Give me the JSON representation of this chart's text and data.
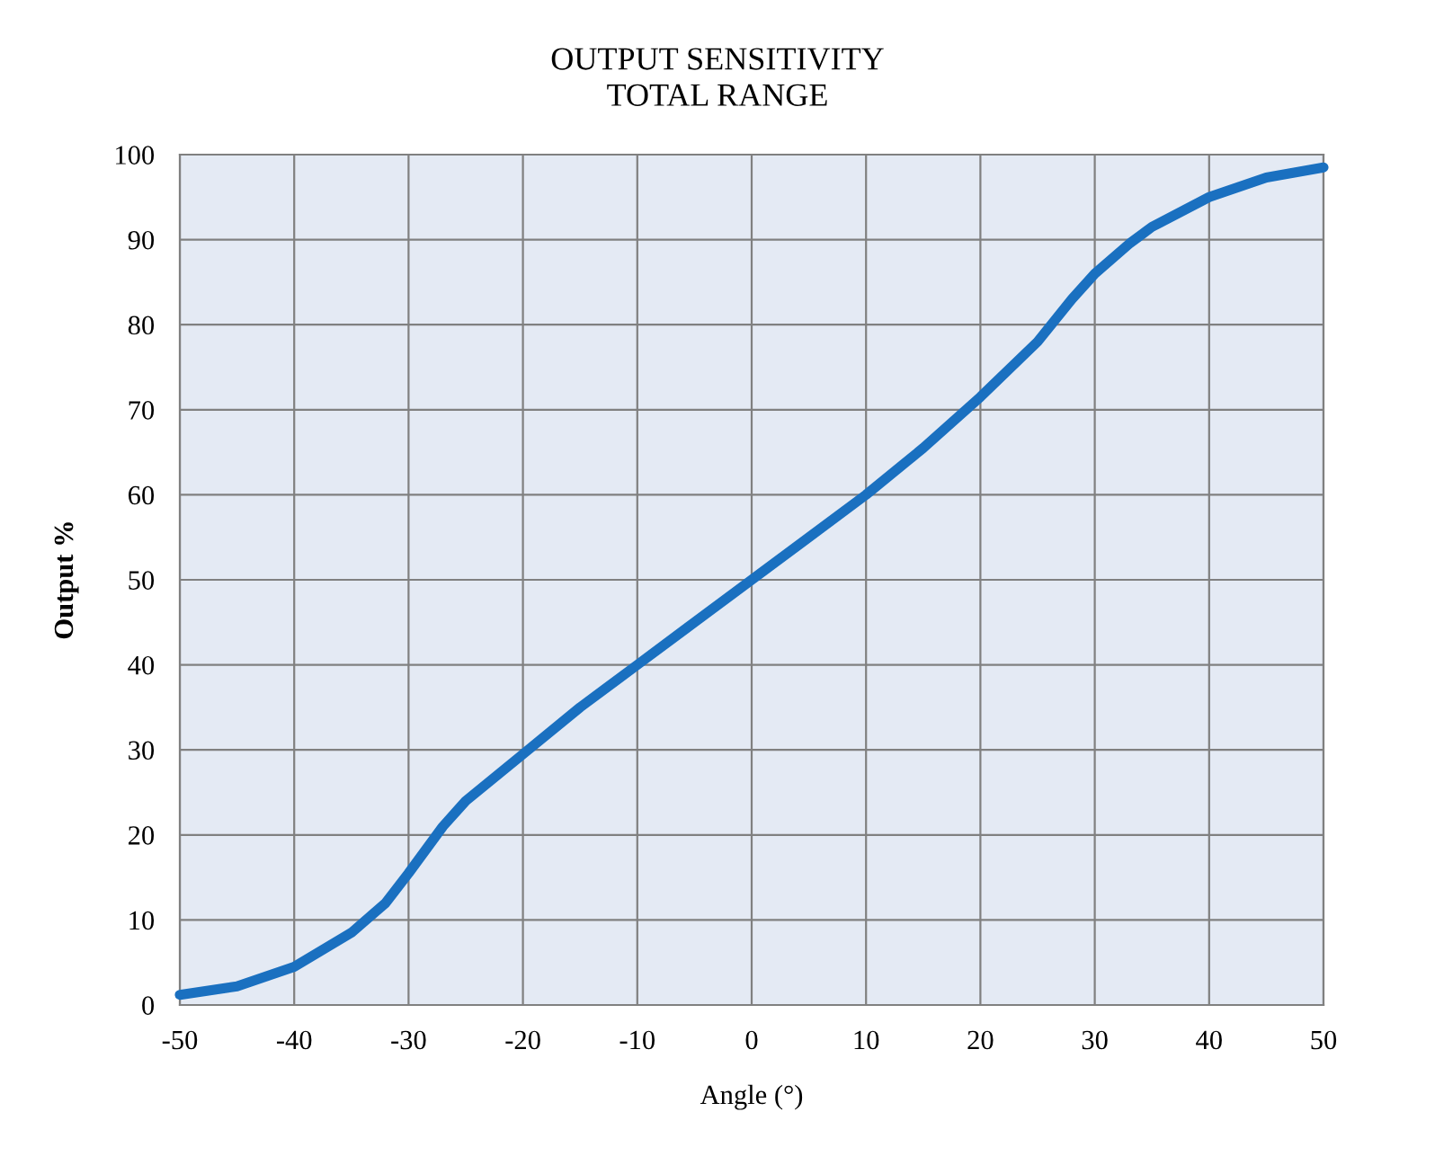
{
  "chart_data": {
    "type": "line",
    "title": "OUTPUT SENSITIVITY\nTOTAL RANGE",
    "xlabel": "Angle (°)",
    "ylabel": "Output %",
    "x": [
      -50,
      -45,
      -40,
      -35,
      -32,
      -30,
      -27,
      -25,
      -20,
      -15,
      -10,
      -5,
      0,
      5,
      10,
      15,
      20,
      25,
      28,
      30,
      33,
      35,
      40,
      45,
      50
    ],
    "series": [
      {
        "color": "#1a70c0",
        "values": [
          1.2,
          2.2,
          4.5,
          8.5,
          12,
          15.5,
          21,
          24,
          29.5,
          35,
          40,
          45,
          50,
          55,
          60,
          65.5,
          71.5,
          78,
          83,
          86,
          89.5,
          91.5,
          95,
          97.3,
          98.5
        ]
      }
    ],
    "xlim": [
      -50,
      50
    ],
    "xticks": [
      -50,
      -40,
      -30,
      -20,
      -10,
      0,
      10,
      20,
      30,
      40,
      50
    ],
    "ylim": [
      0,
      100
    ],
    "yticks": [
      0,
      10,
      20,
      30,
      40,
      50,
      60,
      70,
      80,
      90,
      100
    ],
    "grid": true,
    "legend": false,
    "marker": "none",
    "line_style": "solid"
  }
}
